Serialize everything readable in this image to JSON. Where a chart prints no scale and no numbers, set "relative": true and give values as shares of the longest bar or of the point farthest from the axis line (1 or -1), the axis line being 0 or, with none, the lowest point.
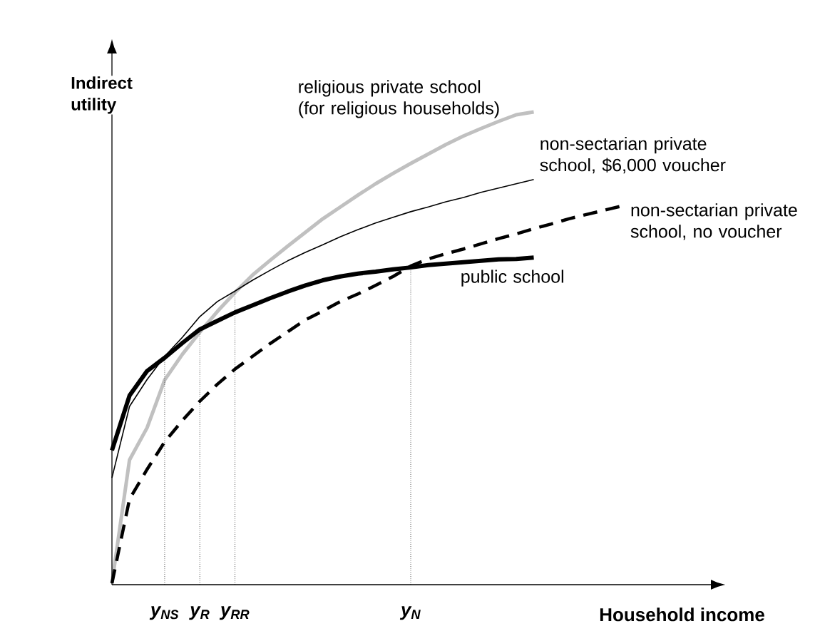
{
  "chart_data": {
    "type": "line",
    "relative": true,
    "xlabel": "Household income",
    "ylabel": "Indirect utility",
    "categories": [
      null,
      null,
      null,
      "y$_{NS}$",
      null,
      "y$_{R}$",
      null,
      "y$_{RR}$",
      null,
      null,
      null,
      null,
      null,
      null,
      null,
      null,
      null,
      "y$_{N}$",
      null,
      null,
      null,
      null,
      null,
      null,
      null,
      null,
      null,
      null,
      null,
      null
    ],
    "series": [
      {
        "name": "religious private school (for religious households)",
        "color": "#c0c0c0",
        "line_style": "solid",
        "values": [
          0.003,
          0.264,
          0.332,
          0.433,
          0.487,
          0.534,
          0.578,
          0.618,
          0.655,
          0.686,
          0.716,
          0.745,
          0.774,
          0.799,
          0.824,
          0.848,
          0.87,
          0.891,
          0.911,
          0.931,
          0.949,
          0.965,
          0.98,
          0.994,
          1.0,
          null,
          null,
          null,
          null,
          null
        ]
      },
      {
        "name": "non-sectarian private school, $6,000 voucher",
        "color": "#000000",
        "line_style": "solid",
        "values": [
          0.226,
          0.377,
          0.434,
          0.483,
          0.523,
          0.567,
          0.599,
          0.621,
          0.644,
          0.665,
          0.685,
          0.703,
          0.719,
          0.736,
          0.751,
          0.765,
          0.777,
          0.789,
          0.799,
          0.81,
          0.819,
          0.83,
          0.839,
          0.848,
          0.857,
          null,
          null,
          null,
          null,
          null
        ]
      },
      {
        "name": "non-sectarian private school, no voucher",
        "color": "#000000",
        "line_style": "dashed",
        "values": [
          0.003,
          0.181,
          0.244,
          0.302,
          0.347,
          0.388,
          0.424,
          0.456,
          0.483,
          0.51,
          0.535,
          0.56,
          0.579,
          0.599,
          0.615,
          0.633,
          0.652,
          0.674,
          0.689,
          0.7,
          0.71,
          0.721,
          0.732,
          0.742,
          0.753,
          0.763,
          0.774,
          0.783,
          0.792,
          0.801
        ]
      },
      {
        "name": "public school",
        "color": "#000000",
        "line_style": "solid",
        "values": [
          0.284,
          0.4,
          0.452,
          0.48,
          0.511,
          0.54,
          0.558,
          0.576,
          0.591,
          0.606,
          0.62,
          0.633,
          0.644,
          0.652,
          0.658,
          0.662,
          0.667,
          0.671,
          0.676,
          0.679,
          0.682,
          0.685,
          0.688,
          0.689,
          0.692,
          null,
          null,
          null,
          null,
          null
        ]
      }
    ],
    "ref_lines": [
      {
        "axis": "x",
        "value": "y$_{NS}$",
        "line_style": "dotted"
      },
      {
        "axis": "x",
        "value": "y$_{R}$",
        "line_style": "dotted"
      },
      {
        "axis": "x",
        "value": "y$_{RR}$",
        "line_style": "dotted"
      },
      {
        "axis": "x",
        "value": "y$_{N}$",
        "line_style": "dotted"
      }
    ],
    "legend": false,
    "marker": "none"
  }
}
